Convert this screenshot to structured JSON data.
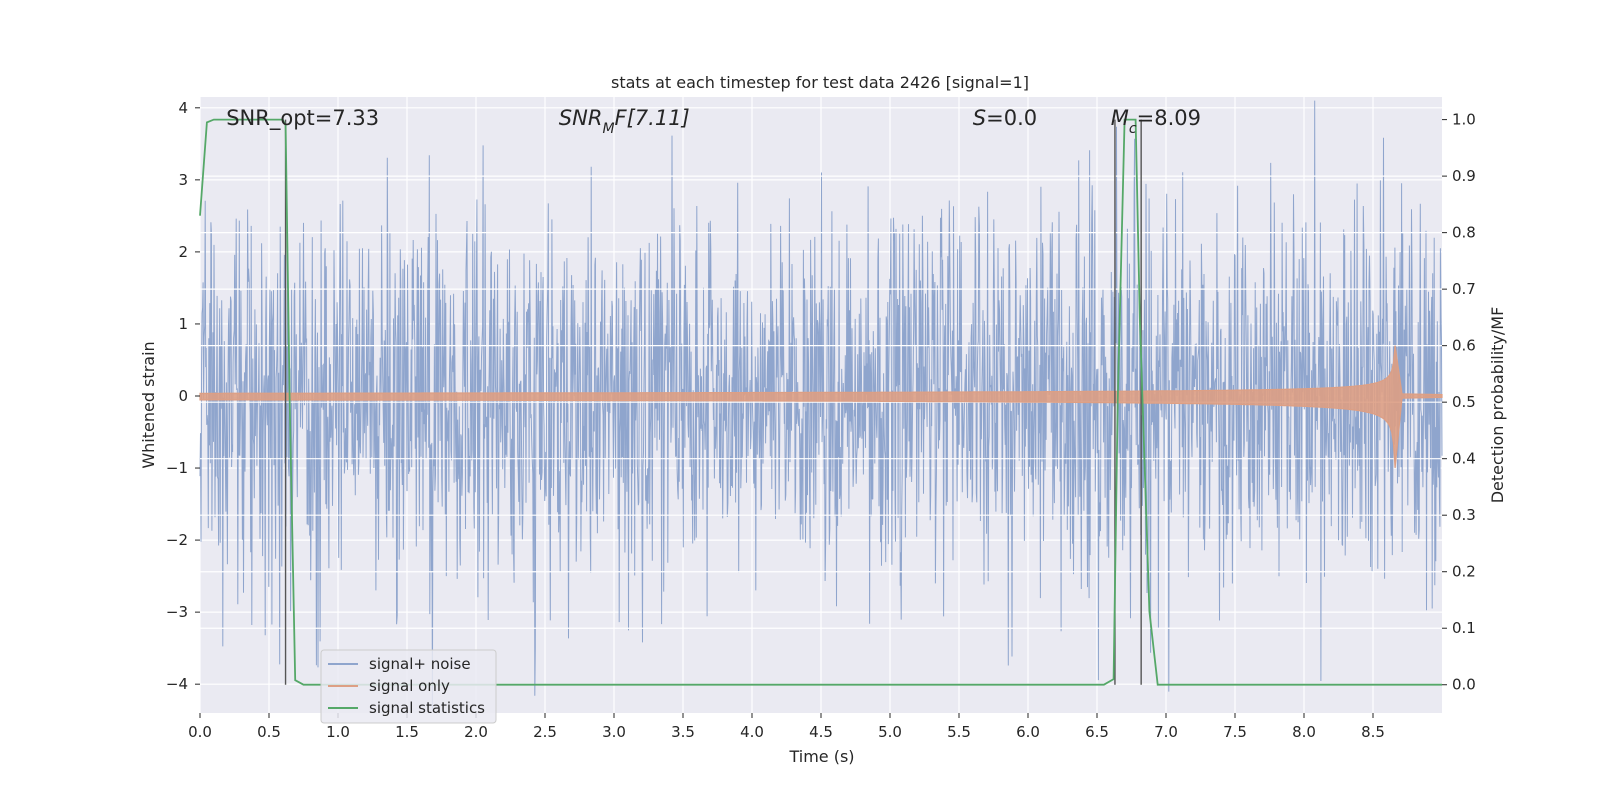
{
  "chart_data": {
    "type": "line",
    "title": "stats at each timestep for test data 2426 [signal=1]",
    "xlabel": "Time (s)",
    "ylabel": "Whitened strain",
    "y2label": "Detection probability/MF",
    "xlim": [
      0.0,
      9.0
    ],
    "ylim": [
      -4.4,
      4.15
    ],
    "y2lim": [
      -0.05,
      1.04
    ],
    "grid": true,
    "legend_position": "lower-left",
    "x_ticks": [
      0.0,
      0.5,
      1.0,
      1.5,
      2.0,
      2.5,
      3.0,
      3.5,
      4.0,
      4.5,
      5.0,
      5.5,
      6.0,
      6.5,
      7.0,
      7.5,
      8.0,
      8.5
    ],
    "x_tick_labels": [
      "0.0",
      "0.5",
      "1.0",
      "1.5",
      "2.0",
      "2.5",
      "3.0",
      "3.5",
      "4.0",
      "4.5",
      "5.0",
      "5.5",
      "6.0",
      "6.5",
      "7.0",
      "7.5",
      "8.0",
      "8.5"
    ],
    "y_ticks": [
      4,
      3,
      2,
      1,
      0,
      -1,
      -2,
      -3,
      -4
    ],
    "y_tick_labels": [
      "4",
      "3",
      "2",
      "1",
      "0",
      "−1",
      "−2",
      "−3",
      "−4"
    ],
    "y2_ticks": [
      1.0,
      0.9,
      0.8,
      0.7,
      0.6,
      0.5,
      0.4,
      0.3,
      0.2,
      0.1,
      0.0
    ],
    "y2_tick_labels": [
      "1.0",
      "0.9",
      "0.8",
      "0.7",
      "0.6",
      "0.5",
      "0.4",
      "0.3",
      "0.2",
      "0.1",
      "0.0"
    ],
    "annotations": [
      {
        "text": "SNR_opt=7.33",
        "italic": false,
        "x": 0.19
      },
      {
        "text": "SNR_MF=[7.11]",
        "italic": true,
        "x": 2.6
      },
      {
        "text": "S=0.0",
        "italic": true,
        "x": 5.6
      },
      {
        "text": "M_c=8.09",
        "italic": true,
        "x": 6.6
      }
    ],
    "vertical_lines": [
      0.62,
      6.63,
      6.82
    ],
    "series": [
      {
        "name": "signal+ noise",
        "color": "#8fa5cd",
        "kind": "noise",
        "axis": "left",
        "spread": 1.3,
        "t_start": 0.0,
        "t_end": 9.0
      },
      {
        "name": "signal only",
        "color": "#dd9f84",
        "kind": "chirp",
        "axis": "left",
        "t_start": 0.0,
        "t_merger": 8.66,
        "t_end": 9.0,
        "peak_amplitude": 0.7,
        "peak_min": -1.0
      },
      {
        "name": "signal statistics",
        "color": "#55a868",
        "kind": "line",
        "axis": "right",
        "x": [
          0.0,
          0.05,
          0.1,
          0.6,
          0.62,
          0.65,
          0.69,
          0.75,
          6.55,
          6.62,
          6.65,
          6.7,
          6.78,
          6.81,
          6.88,
          6.94,
          9.0
        ],
        "y": [
          0.83,
          0.995,
          1.0,
          1.0,
          0.99,
          0.5,
          0.008,
          0.0,
          0.0,
          0.01,
          0.5,
          1.0,
          1.0,
          0.65,
          0.13,
          0.0,
          0.0
        ]
      }
    ]
  }
}
